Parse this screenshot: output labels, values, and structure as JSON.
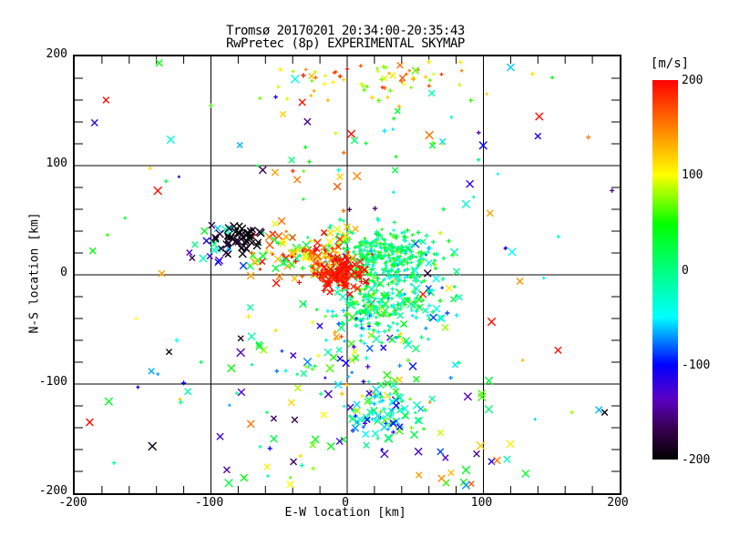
{
  "title": {
    "line1": "Tromsø 20170201 20:34:00-20:35:43",
    "line2": "RwPretec (8p) EXPERIMENTAL SKYMAP"
  },
  "axes": {
    "xlabel": "E-W location [km]",
    "ylabel": "N-S location [km]",
    "xlim": [
      -200,
      200
    ],
    "ylim": [
      -200,
      200
    ],
    "xticks": [
      -200,
      -100,
      0,
      100,
      200
    ],
    "yticks": [
      200,
      100,
      0,
      -100,
      -200
    ],
    "minor_step": 20,
    "grid_values": [
      -100,
      0,
      100
    ],
    "frame_color": "#000000"
  },
  "colorbar": {
    "label": "[m/s]",
    "min": -200,
    "max": 200,
    "ticks": [
      200,
      100,
      0,
      -100,
      -200
    ]
  },
  "chart_data": {
    "type": "scatter",
    "title": "Tromsø 20170201 20:34:00-20:35:43 / RwPretec (8p) EXPERIMENTAL SKYMAP",
    "xlabel": "E-W location [km]",
    "ylabel": "N-S location [km]",
    "xlim": [
      -200,
      200
    ],
    "ylim": [
      -200,
      200
    ],
    "value_unit": "m/s",
    "value_range": [
      -200,
      200
    ],
    "grid": true,
    "seed": 1337,
    "colormap": [
      [
        -200,
        "#000000"
      ],
      [
        -168,
        "#38004E"
      ],
      [
        -135,
        "#5A00C8"
      ],
      [
        -100,
        "#0000FF"
      ],
      [
        -50,
        "#00FFFF"
      ],
      [
        0,
        "#00FF80"
      ],
      [
        48,
        "#00FF00"
      ],
      [
        100,
        "#FFFF00"
      ],
      [
        150,
        "#FF8000"
      ],
      [
        200,
        "#FF0000"
      ]
    ],
    "clusters": [
      {
        "name": "field-sparse",
        "cx": 0,
        "cy": 0,
        "sx": 108,
        "sy": 102,
        "n": 80,
        "marker": "mix",
        "x_frac": 0.5,
        "vel": 0,
        "vel_spread": 195,
        "dist": "uniform",
        "spatial": "uniform"
      },
      {
        "name": "south-wide",
        "cx": 5,
        "cy": -150,
        "sx": 55,
        "sy": 25,
        "n": 45,
        "marker": "mix",
        "x_frac": 0.7,
        "vel": 0,
        "vel_spread": 170,
        "dist": "uniform",
        "spatial": "uniform"
      },
      {
        "name": "upper-sparse",
        "cx": 15,
        "cy": 105,
        "sx": 48,
        "sy": 28,
        "n": 34,
        "marker": "mix",
        "x_frac": 0.4,
        "vel": 60,
        "vel_spread": 130,
        "dist": "uniform"
      },
      {
        "name": "top-band",
        "cx": 25,
        "cy": 181,
        "sx": 33,
        "sy": 10,
        "n": 65,
        "marker": "mix",
        "x_frac": 0.12,
        "vel": 130,
        "vel_spread": 70,
        "dist": "uniform"
      },
      {
        "name": "south-scatter",
        "cx": 0,
        "cy": -78,
        "sx": 32,
        "sy": 16,
        "n": 70,
        "marker": "mix",
        "x_frac": 0.45,
        "vel": 0,
        "vel_spread": 140,
        "dist": "uniform"
      },
      {
        "name": "cyan-south",
        "cx": 27,
        "cy": -124,
        "sx": 13,
        "sy": 12,
        "n": 90,
        "marker": "mix",
        "x_frac": 0.55,
        "vel": -30,
        "vel_spread": 55,
        "dist": "normal"
      },
      {
        "name": "east-fringe",
        "cx": 55,
        "cy": 0,
        "sx": 14,
        "sy": 22,
        "n": 60,
        "marker": "mix",
        "x_frac": 0.3,
        "vel": -20,
        "vel_spread": 70,
        "dist": "uniform"
      },
      {
        "name": "green-south",
        "cx": 24,
        "cy": -27,
        "sx": 20,
        "sy": 15,
        "n": 220,
        "marker": "mix",
        "x_frac": 0.15,
        "vel": 0,
        "vel_spread": 40,
        "dist": "normal"
      },
      {
        "name": "green-main",
        "cx": 24,
        "cy": 17,
        "sx": 19,
        "sy": 13,
        "n": 330,
        "marker": "+",
        "x_frac": 0.0,
        "vel": 10,
        "vel_spread": 30,
        "dist": "normal"
      },
      {
        "name": "mid-band",
        "cx": -42,
        "cy": 20,
        "sx": 17,
        "sy": 12,
        "n": 65,
        "marker": "mix",
        "x_frac": 0.6,
        "vel": 110,
        "vel_spread": 105,
        "dist": "uniform"
      },
      {
        "name": "west-mixed",
        "cx": -96,
        "cy": 27,
        "sx": 10,
        "sy": 11,
        "n": 22,
        "marker": "x",
        "x_frac": 1.0,
        "vel": -70,
        "vel_spread": 115,
        "dist": "uniform"
      },
      {
        "name": "warm-inner",
        "cx": -16,
        "cy": 16,
        "sx": 11,
        "sy": 10,
        "n": 85,
        "marker": "mix",
        "x_frac": 0.4,
        "vel": 150,
        "vel_spread": 60,
        "dist": "uniform"
      },
      {
        "name": "red-core",
        "cx": -4,
        "cy": 1,
        "sx": 8,
        "sy": 7,
        "n": 140,
        "marker": "mix",
        "x_frac": 0.35,
        "vel": 193,
        "vel_spread": 10,
        "dist": "normal"
      },
      {
        "name": "black-core",
        "cx": -78,
        "cy": 33,
        "sx": 7,
        "sy": 7,
        "n": 48,
        "marker": "x",
        "x_frac": 1.0,
        "vel": -193,
        "vel_spread": 12,
        "dist": "normal"
      }
    ],
    "isolated_points": [
      [
        -138,
        194,
        40,
        "x"
      ],
      [
        -177,
        160,
        195,
        "x"
      ],
      [
        -139,
        77,
        195,
        "x"
      ],
      [
        -62,
        96,
        -165,
        "x"
      ],
      [
        -163,
        52,
        30,
        "+"
      ],
      [
        -33,
        158,
        195,
        "x"
      ],
      [
        3,
        129,
        195,
        "x"
      ],
      [
        37,
        150,
        25,
        "x"
      ],
      [
        70,
        122,
        -55,
        "x"
      ],
      [
        121,
        21,
        -50,
        "x"
      ],
      [
        141,
        145,
        195,
        "x"
      ],
      [
        140,
        127,
        -110,
        "x"
      ],
      [
        136,
        184,
        110,
        "+"
      ],
      [
        177,
        126,
        150,
        "+"
      ],
      [
        -189,
        -135,
        195,
        "x"
      ],
      [
        -175,
        -116,
        35,
        "x"
      ],
      [
        -143,
        -157,
        -195,
        "x"
      ],
      [
        -120,
        -99,
        -100,
        "+"
      ],
      [
        106,
        -43,
        195,
        "x"
      ],
      [
        104,
        -97,
        30,
        "x"
      ],
      [
        165,
        -126,
        80,
        "+"
      ],
      [
        189,
        -126,
        -195,
        "x"
      ],
      [
        95,
        -164,
        -150,
        "x"
      ],
      [
        106,
        -171,
        -110,
        "x"
      ],
      [
        110,
        -170,
        150,
        "x"
      ],
      [
        131,
        -182,
        30,
        "x"
      ],
      [
        -155,
        -40,
        100,
        "+"
      ],
      [
        -125,
        -60,
        -50,
        "+"
      ],
      [
        -100,
        155,
        60,
        "+"
      ],
      [
        60,
        195,
        110,
        "+"
      ],
      [
        120,
        190,
        -60,
        "x"
      ],
      [
        155,
        35,
        -30,
        "+"
      ]
    ]
  }
}
